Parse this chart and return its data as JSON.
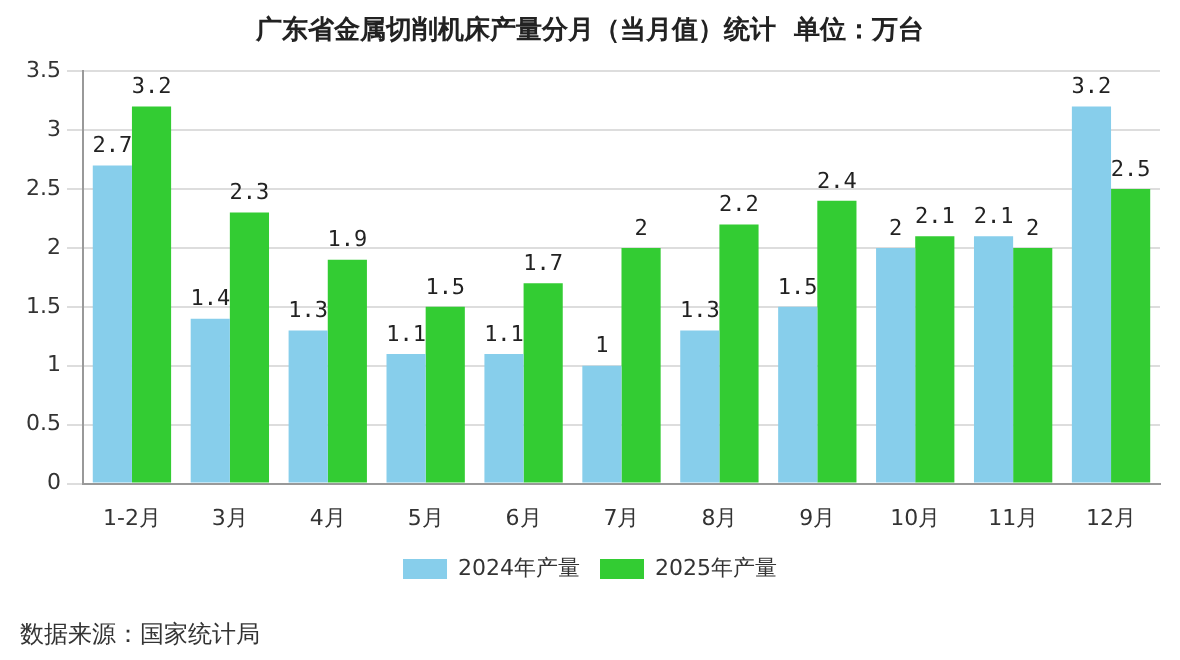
{
  "chart_data": {
    "type": "bar",
    "title": "广东省金属切削机床产量分月（当月值）统计  单位：万台",
    "categories": [
      "1-2月",
      "3月",
      "4月",
      "5月",
      "6月",
      "7月",
      "8月",
      "9月",
      "10月",
      "11月",
      "12月"
    ],
    "series": [
      {
        "name": "2024年产量",
        "color": "#87ceeb",
        "values": [
          2.7,
          1.4,
          1.3,
          1.1,
          1.1,
          1,
          1.3,
          1.5,
          2,
          2.1,
          3.2
        ]
      },
      {
        "name": "2025年产量",
        "color": "#33cc33",
        "values": [
          3.2,
          2.3,
          1.9,
          1.5,
          1.7,
          2,
          2.2,
          2.4,
          2.1,
          2,
          2.5
        ]
      }
    ],
    "ylim": [
      0,
      3.5
    ],
    "yticks": [
      0,
      0.5,
      1,
      1.5,
      2,
      2.5,
      3,
      3.5
    ],
    "grid": "y",
    "legend": "bottom",
    "data_labels": true,
    "annotations": [
      "数据来源：国家统计局"
    ]
  }
}
